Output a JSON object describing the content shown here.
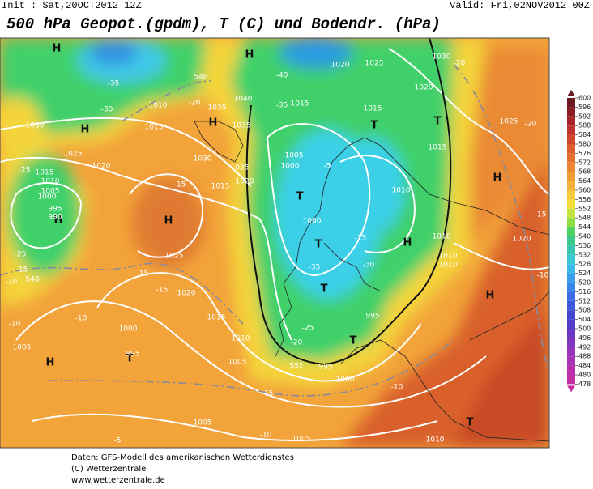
{
  "header": {
    "init": "Init : Sat,20OCT2012 12Z",
    "valid": "Valid: Fri,02NOV2012 00Z",
    "title": "500 hPa Geopot.(gpdm), T (C) und Bodendr. (hPa)"
  },
  "map_labels": [
    "H",
    "H",
    "H",
    "H",
    "H",
    "H",
    "T",
    "T",
    "T",
    "T",
    "T",
    "T",
    "H",
    "H",
    "H",
    "T",
    "T",
    "H",
    "1010",
    "1015",
    "1030",
    "1025",
    "1020",
    "1015",
    "1010",
    "1005",
    "1000",
    "995",
    "990",
    "1035",
    "1040",
    "1035",
    "1030",
    "1025",
    "1020",
    "1015",
    "1025",
    "1020",
    "1015",
    "1010",
    "1005",
    "1000",
    "995",
    "1005",
    "1005",
    "1005",
    "1010",
    "1000",
    "995",
    "995",
    "1010",
    "1010",
    "1010",
    "1015",
    "1015",
    "1025",
    "1020",
    "1030",
    "1020",
    "1025",
    "1015",
    "1005",
    "1000",
    "1000",
    "1020",
    "1010",
    "-35",
    "-30",
    "-40",
    "-35",
    "-25",
    "-25",
    "-15",
    "-10",
    "-15",
    "-15",
    "-15",
    "-10",
    "-10",
    "-15",
    "-10",
    "-5",
    "-20",
    "-20",
    "-15",
    "-10",
    "-10",
    "-20",
    "-25",
    "-30",
    "-35",
    "-15",
    "-5",
    "-20",
    "548",
    "552",
    "548"
  ],
  "colorbar": {
    "labels": [
      600,
      596,
      592,
      588,
      584,
      580,
      576,
      572,
      568,
      564,
      560,
      556,
      552,
      548,
      544,
      540,
      536,
      532,
      528,
      524,
      520,
      516,
      512,
      508,
      504,
      500,
      496,
      492,
      488,
      484,
      480,
      478
    ]
  },
  "footer": [
    "Daten: GFS-Modell des amerikanischen Wetterdienstes",
    "(C) Wetterzentrale",
    "www.wetterzentrale.de"
  ]
}
